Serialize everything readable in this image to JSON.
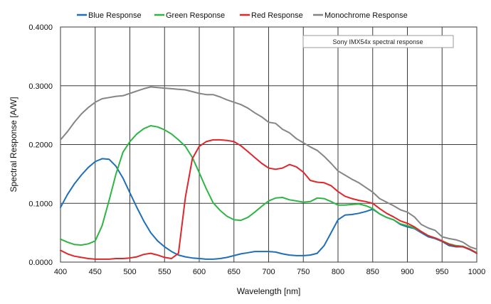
{
  "chart_data": {
    "type": "line",
    "title": "",
    "xlabel": "Wavelength [nm]",
    "ylabel": "Spectral Response [A/W]",
    "xlim": [
      400,
      1000
    ],
    "ylim": [
      0,
      0.4
    ],
    "x_ticks": [
      "400",
      "450",
      "500",
      "550",
      "600",
      "650",
      "700",
      "750",
      "800",
      "850",
      "900",
      "950",
      "1000"
    ],
    "y_ticks": [
      "0.0000",
      "0.1000",
      "0.2000",
      "0.3000",
      "0.4000"
    ],
    "grid": true,
    "legend_position": "top",
    "annotation": "Sony IMX54x spectral response",
    "x": [
      400,
      410,
      420,
      430,
      440,
      450,
      460,
      470,
      480,
      490,
      500,
      510,
      520,
      530,
      540,
      550,
      560,
      570,
      580,
      590,
      600,
      610,
      620,
      630,
      640,
      650,
      660,
      670,
      680,
      690,
      700,
      710,
      720,
      730,
      740,
      750,
      760,
      770,
      780,
      790,
      800,
      810,
      820,
      830,
      840,
      850,
      860,
      870,
      880,
      890,
      900,
      910,
      920,
      930,
      940,
      950,
      960,
      970,
      980,
      990,
      1000
    ],
    "series": [
      {
        "name": "Blue Response",
        "color": "#1f6fb8",
        "values": [
          0.093,
          0.115,
          0.133,
          0.148,
          0.161,
          0.171,
          0.176,
          0.175,
          0.163,
          0.143,
          0.118,
          0.093,
          0.07,
          0.05,
          0.036,
          0.026,
          0.018,
          0.012,
          0.009,
          0.007,
          0.006,
          0.005,
          0.005,
          0.006,
          0.008,
          0.011,
          0.014,
          0.016,
          0.018,
          0.018,
          0.018,
          0.017,
          0.014,
          0.012,
          0.011,
          0.011,
          0.012,
          0.015,
          0.028,
          0.05,
          0.072,
          0.08,
          0.081,
          0.083,
          0.086,
          0.09,
          0.082,
          0.076,
          0.072,
          0.064,
          0.06,
          0.057,
          0.05,
          0.043,
          0.04,
          0.035,
          0.028,
          0.026,
          0.026,
          0.021,
          0.015
        ]
      },
      {
        "name": "Green Response",
        "color": "#2fb544",
        "values": [
          0.039,
          0.034,
          0.03,
          0.029,
          0.031,
          0.036,
          0.062,
          0.105,
          0.15,
          0.187,
          0.205,
          0.218,
          0.227,
          0.232,
          0.23,
          0.225,
          0.218,
          0.208,
          0.197,
          0.178,
          0.152,
          0.125,
          0.101,
          0.088,
          0.078,
          0.072,
          0.071,
          0.076,
          0.085,
          0.095,
          0.104,
          0.109,
          0.11,
          0.106,
          0.104,
          0.102,
          0.103,
          0.109,
          0.108,
          0.103,
          0.097,
          0.097,
          0.098,
          0.099,
          0.096,
          0.091,
          0.082,
          0.076,
          0.072,
          0.065,
          0.062,
          0.058,
          0.052,
          0.045,
          0.041,
          0.036,
          0.031,
          0.028,
          0.027,
          0.022,
          0.016
        ]
      },
      {
        "name": "Red Response",
        "color": "#e0262a",
        "values": [
          0.02,
          0.014,
          0.01,
          0.008,
          0.006,
          0.005,
          0.005,
          0.005,
          0.006,
          0.006,
          0.007,
          0.009,
          0.013,
          0.015,
          0.012,
          0.008,
          0.006,
          0.015,
          0.11,
          0.176,
          0.197,
          0.205,
          0.208,
          0.208,
          0.207,
          0.205,
          0.198,
          0.188,
          0.178,
          0.168,
          0.16,
          0.158,
          0.16,
          0.166,
          0.162,
          0.153,
          0.139,
          0.136,
          0.135,
          0.13,
          0.12,
          0.112,
          0.108,
          0.105,
          0.103,
          0.1,
          0.091,
          0.083,
          0.077,
          0.07,
          0.066,
          0.06,
          0.052,
          0.045,
          0.041,
          0.036,
          0.03,
          0.027,
          0.026,
          0.022,
          0.015
        ]
      },
      {
        "name": "Monochrome Response",
        "color": "#858585",
        "values": [
          0.208,
          0.222,
          0.238,
          0.252,
          0.263,
          0.272,
          0.278,
          0.28,
          0.282,
          0.283,
          0.287,
          0.291,
          0.295,
          0.298,
          0.297,
          0.296,
          0.295,
          0.294,
          0.293,
          0.29,
          0.287,
          0.285,
          0.285,
          0.281,
          0.276,
          0.272,
          0.268,
          0.262,
          0.254,
          0.247,
          0.238,
          0.236,
          0.226,
          0.22,
          0.21,
          0.203,
          0.196,
          0.19,
          0.18,
          0.168,
          0.155,
          0.148,
          0.141,
          0.135,
          0.127,
          0.119,
          0.108,
          0.102,
          0.096,
          0.089,
          0.085,
          0.077,
          0.064,
          0.058,
          0.054,
          0.043,
          0.04,
          0.038,
          0.034,
          0.026,
          0.022
        ]
      }
    ]
  }
}
